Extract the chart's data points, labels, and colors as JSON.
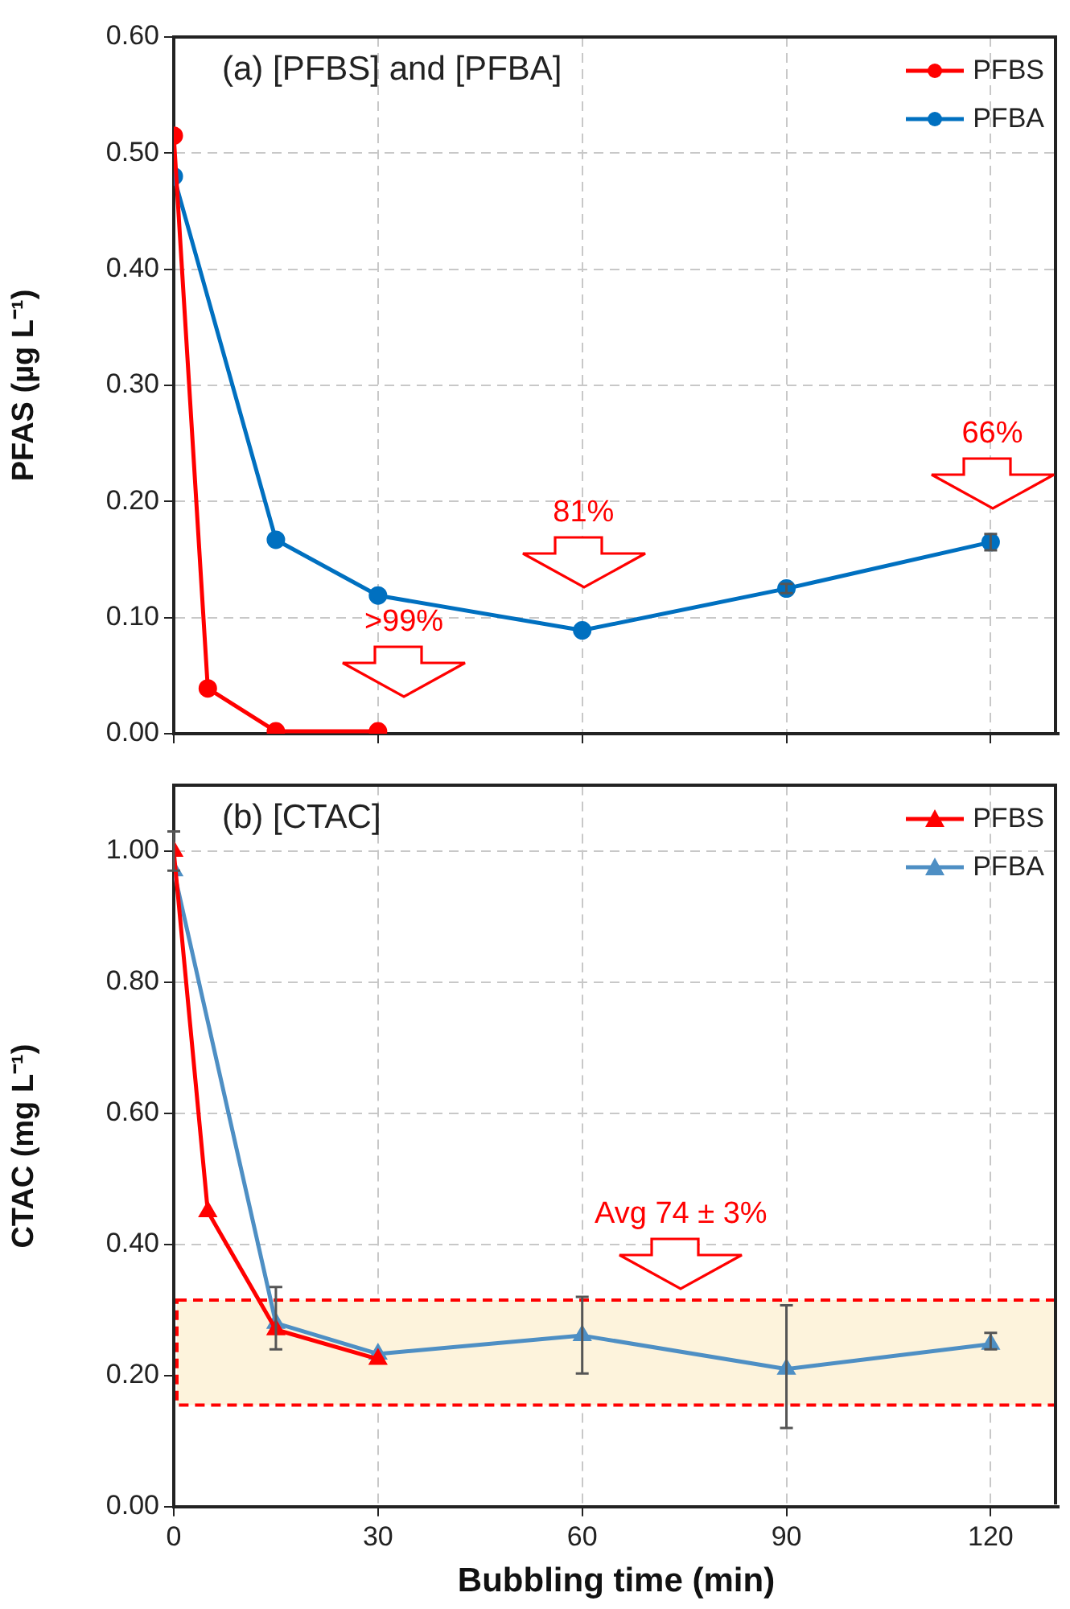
{
  "chart_data": [
    {
      "type": "line",
      "title": "(a) [PFBS] and [PFBA]",
      "ylabel": "PFAS (µg L⁻¹)",
      "xlim": [
        0,
        130
      ],
      "xticks": [
        0,
        30,
        60,
        90,
        120
      ],
      "ylim": [
        0,
        0.6
      ],
      "yticks": [
        {
          "value": 0,
          "label": "0.00"
        },
        {
          "value": 0.1,
          "label": "0.10"
        },
        {
          "value": 0.2,
          "label": "0.20"
        },
        {
          "value": 0.3,
          "label": "0.30"
        },
        {
          "value": 0.4,
          "label": "0.40"
        },
        {
          "value": 0.5,
          "label": "0.50"
        },
        {
          "value": 0.6,
          "label": "0.60"
        }
      ],
      "tick_labels": "y",
      "grid": true,
      "legend": "top right",
      "marker": "circle",
      "line_style": "solid",
      "series": [
        {
          "name": "PFBS",
          "color": "#ff0000",
          "x": [
            0,
            5,
            15,
            30
          ],
          "values": [
            0.515,
            0.039,
            0.002,
            0.002
          ]
        },
        {
          "name": "PFBA",
          "color": "#0070c0",
          "x": [
            0,
            15,
            30,
            60,
            90,
            120
          ],
          "values": [
            0.48,
            0.167,
            0.119,
            0.089,
            0.125,
            0.165
          ],
          "errors": [
            null,
            null,
            null,
            null,
            [
              0.121,
              0.129
            ],
            [
              0.158,
              0.172
            ]
          ]
        }
      ],
      "annotations": [
        ">99%",
        "81%",
        "66%"
      ]
    },
    {
      "type": "line",
      "title": "(b) [CTAC]",
      "ylabel": "CTAC (mg L⁻¹)",
      "xlabel": "Bubbling time (min)",
      "xlim": [
        0,
        130
      ],
      "xticks": [
        0,
        30,
        60,
        90,
        120
      ],
      "ylim": [
        0,
        1.1
      ],
      "yticks": [
        {
          "value": 0,
          "label": "0.00"
        },
        {
          "value": 0.2,
          "label": "0.20"
        },
        {
          "value": 0.4,
          "label": "0.40"
        },
        {
          "value": 0.6,
          "label": "0.60"
        },
        {
          "value": 0.8,
          "label": "0.80"
        },
        {
          "value": 1,
          "label": "1.00"
        }
      ],
      "grid": true,
      "legend": "top right",
      "marker": "triangle",
      "line_style": "solid",
      "series": [
        {
          "name": "PFBS",
          "color": "#ff0000",
          "x": [
            0,
            5,
            15,
            30
          ],
          "values": [
            1.0,
            0.45,
            0.27,
            0.225
          ],
          "errors": [
            [
              0.97,
              1.03
            ],
            null,
            null,
            null
          ]
        },
        {
          "name": "PFBA",
          "color": "#4e8fc4",
          "x": [
            0,
            15,
            30,
            60,
            90,
            120
          ],
          "values": [
            0.97,
            0.28,
            0.233,
            0.261,
            0.21,
            0.248
          ],
          "errors": [
            null,
            [
              0.24,
              0.335
            ],
            null,
            [
              0.203,
              0.32
            ],
            [
              0.12,
              0.307
            ],
            [
              0.24,
              0.265
            ]
          ]
        }
      ],
      "bands": [
        {
          "axis": "y",
          "from": 0.155,
          "to": 0.315,
          "color": "#fdf3dc"
        }
      ],
      "annotations": [
        "Avg 74 ± 3%"
      ]
    }
  ]
}
